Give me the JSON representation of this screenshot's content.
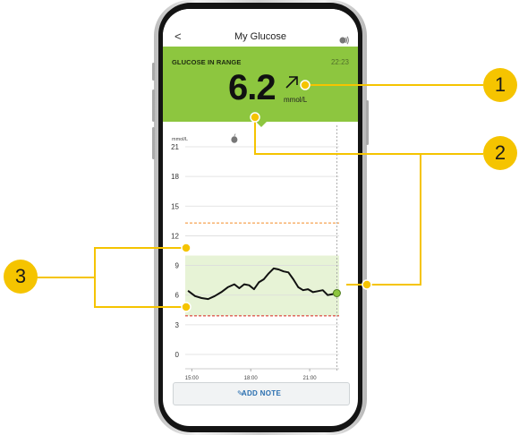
{
  "header": {
    "back_glyph": "<",
    "title": "My Glucose",
    "sound_icon": "sound-icon"
  },
  "banner": {
    "status": "GLUCOSE IN RANGE",
    "time": "22:23",
    "reading": "6.2",
    "trend_icon": "trend-arrow-up-right-icon",
    "unit": "mmol/L",
    "color": "#8dc63f"
  },
  "chart_data": {
    "type": "line",
    "y_unit_label": "mmol/L",
    "y_ticks": [
      "21",
      "18",
      "15",
      "12",
      "9",
      "6",
      "3",
      "0"
    ],
    "x_ticks": [
      "15:00",
      "18:00",
      "21:00"
    ],
    "ylim": [
      0,
      21
    ],
    "target_range": [
      3.9,
      10
    ],
    "high_alarm": 13.3,
    "low_alarm": 3.9,
    "current_time_marker": "22:23",
    "meal_marker": "apple-icon",
    "x": [
      "14:50",
      "15:10",
      "15:30",
      "15:50",
      "16:10",
      "16:30",
      "16:50",
      "17:10",
      "17:25",
      "17:40",
      "17:55",
      "18:10",
      "18:25",
      "18:40",
      "18:55",
      "19:10",
      "19:25",
      "19:40",
      "19:55",
      "20:10",
      "20:25",
      "20:40",
      "20:55",
      "21:10",
      "21:25",
      "21:40",
      "21:55",
      "22:10",
      "22:23"
    ],
    "values": [
      6.4,
      5.9,
      5.7,
      5.6,
      5.9,
      6.3,
      6.8,
      7.1,
      6.7,
      7.1,
      7.0,
      6.6,
      7.3,
      7.6,
      8.2,
      8.7,
      8.6,
      8.4,
      8.3,
      7.6,
      6.8,
      6.5,
      6.6,
      6.3,
      6.4,
      6.5,
      6.0,
      6.1,
      6.2
    ],
    "colors": {
      "line": "#111111",
      "range_fill": "#e7f3d6",
      "high": "#f28c28",
      "low": "#d9231d",
      "current_point": "#8dc63f"
    }
  },
  "footer": {
    "add_note_label": "ADD NOTE",
    "pencil_icon": "pencil-icon"
  },
  "callouts": [
    {
      "number": "1",
      "target": "glucose-reading"
    },
    {
      "number": "2",
      "target": "chart-markers"
    },
    {
      "number": "3",
      "target": "target-range"
    }
  ],
  "accent_color": "#f5c400"
}
